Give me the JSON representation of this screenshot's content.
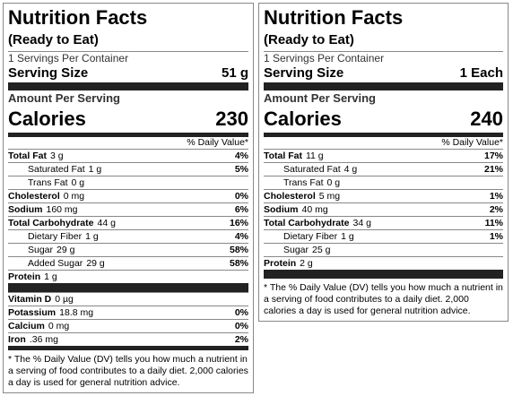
{
  "labels": [
    {
      "title": "Nutrition Facts",
      "subtitle": "(Ready to Eat)",
      "servings": "1 Servings Per Container",
      "serving_size_label": "Serving Size",
      "serving_size": "51 g",
      "amount_per_serving": "Amount Per Serving",
      "calories_label": "Calories",
      "calories": "230",
      "dv_header": "% Daily Value*",
      "sections": [
        [
          {
            "name": "Total Fat",
            "amount": "3 g",
            "dv": "4%",
            "sub": [
              {
                "name": "Saturated Fat",
                "amount": "1 g",
                "dv": "5%"
              },
              {
                "name": "Trans Fat",
                "amount": "0 g"
              }
            ]
          },
          {
            "name": "Cholesterol",
            "amount": "0 mg",
            "dv": "0%"
          },
          {
            "name": "Sodium",
            "amount": "160 mg",
            "dv": "6%"
          },
          {
            "name": "Total Carbohydrate",
            "amount": "44 g",
            "dv": "16%",
            "sub": [
              {
                "name": "Dietary Fiber",
                "amount": "1 g",
                "dv": "4%"
              },
              {
                "name": "Sugar",
                "amount": "29 g",
                "dv": "58%"
              },
              {
                "name": "Added Sugar",
                "amount": "29 g",
                "dv": "58%"
              }
            ]
          },
          {
            "name": "Protein",
            "amount": "1 g"
          }
        ],
        [
          {
            "name": "Vitamin D",
            "amount": "0 µg"
          },
          {
            "name": "Potassium",
            "amount": "18.8 mg",
            "dv": "0%"
          },
          {
            "name": "Calcium",
            "amount": "0 mg",
            "dv": "0%"
          },
          {
            "name": "Iron",
            "amount": ".36 mg",
            "dv": "2%"
          }
        ]
      ],
      "footnote": "* The % Daily Value (DV) tells you how much a nutrient in a serving of food contributes to a daily diet. 2,000 calories a day is used for general nutrition advice."
    },
    {
      "title": "Nutrition Facts",
      "subtitle": "(Ready to Eat)",
      "servings": "1 Servings Per Container",
      "serving_size_label": "Serving Size",
      "serving_size": "1 Each",
      "amount_per_serving": "Amount Per Serving",
      "calories_label": "Calories",
      "calories": "240",
      "dv_header": "% Daily Value*",
      "sections": [
        [
          {
            "name": "Total Fat",
            "amount": "11 g",
            "dv": "17%",
            "sub": [
              {
                "name": "Saturated Fat",
                "amount": "4 g",
                "dv": "21%"
              },
              {
                "name": "Trans Fat",
                "amount": "0 g"
              }
            ]
          },
          {
            "name": "Cholesterol",
            "amount": "5 mg",
            "dv": "1%"
          },
          {
            "name": "Sodium",
            "amount": "40 mg",
            "dv": "2%"
          },
          {
            "name": "Total Carbohydrate",
            "amount": "34 g",
            "dv": "11%",
            "sub": [
              {
                "name": "Dietary Fiber",
                "amount": "1 g",
                "dv": "1%"
              },
              {
                "name": "Sugar",
                "amount": "25 g"
              }
            ]
          },
          {
            "name": "Protein",
            "amount": "2 g"
          }
        ]
      ],
      "footnote": "* The % Daily Value (DV) tells you how much a nutrient in a serving of food contributes to a daily diet. 2,000 calories a day is used for general nutrition advice."
    }
  ]
}
